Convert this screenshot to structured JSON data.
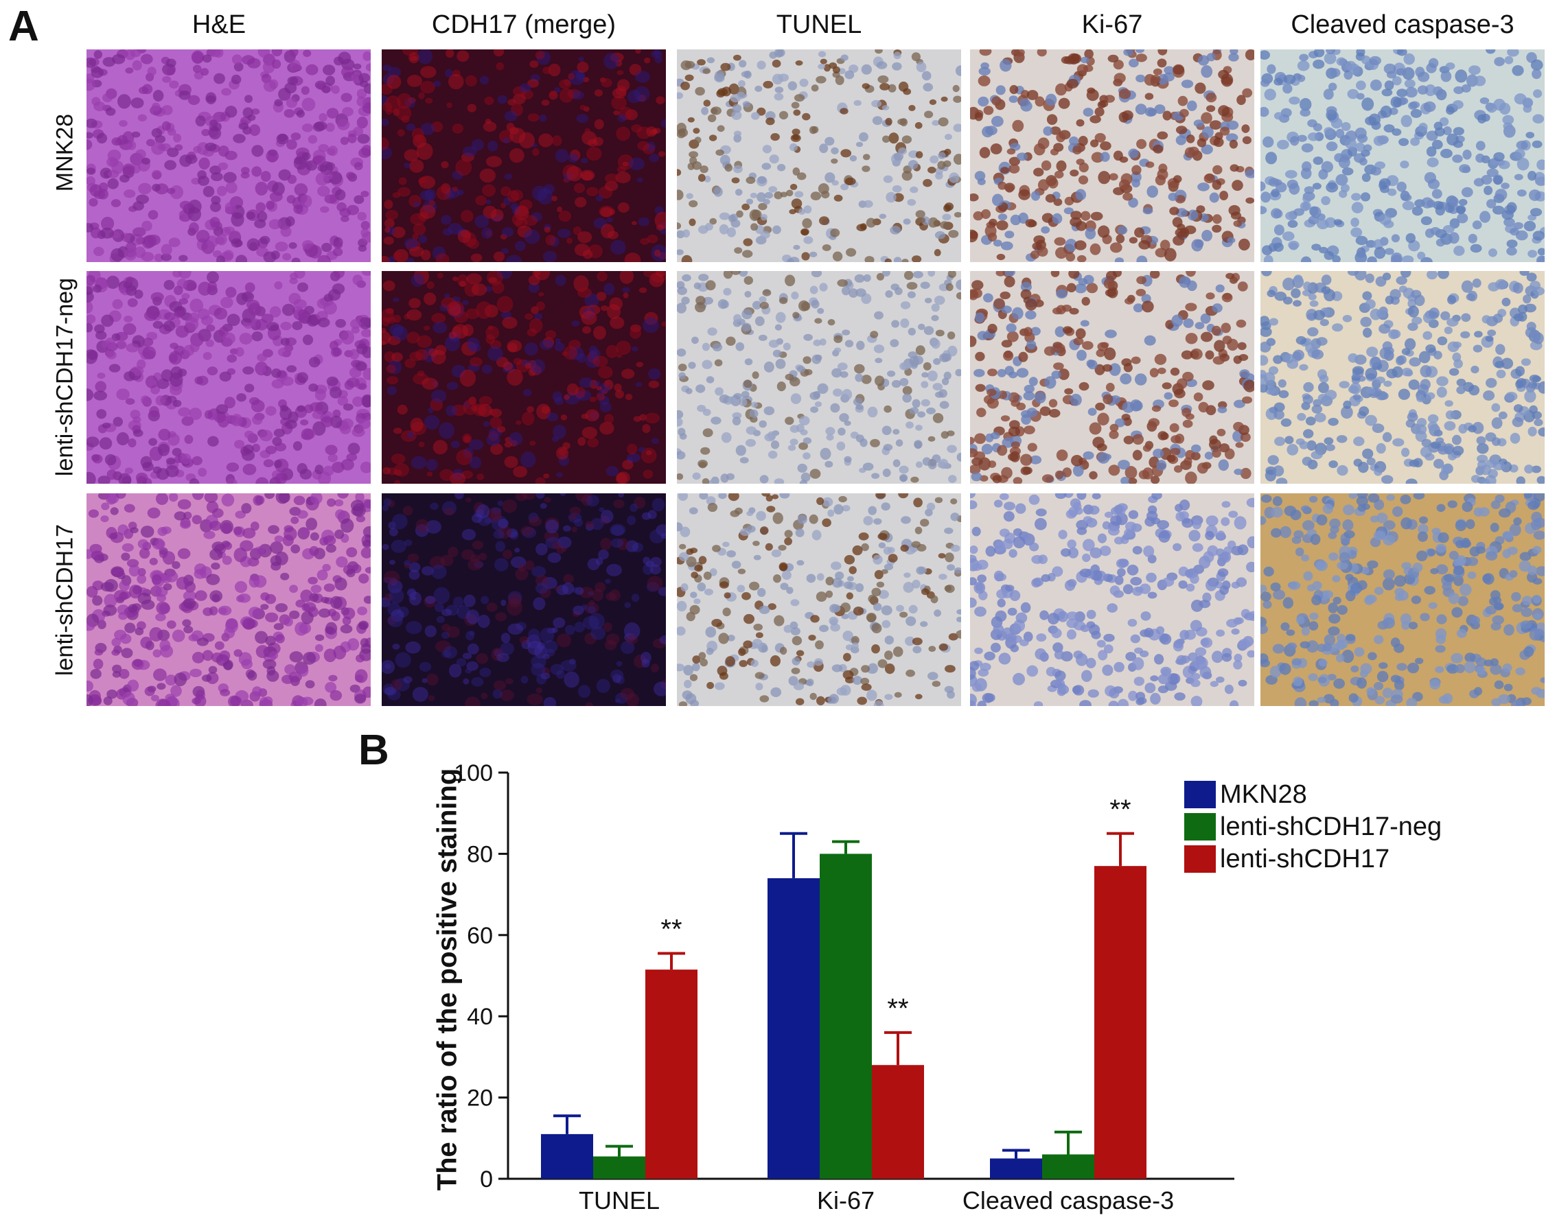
{
  "panel_a": {
    "letter": "A",
    "columns": [
      "H&E",
      "CDH17 (merge)",
      "TUNEL",
      "Ki-67",
      "Cleaved caspase-3"
    ],
    "rows": [
      "MNK28",
      "lenti-shCDH17-neg",
      "lenti-shCDH17"
    ]
  },
  "panel_b": {
    "letter": "B"
  },
  "chart_data": {
    "type": "bar",
    "title": "",
    "xlabel": "",
    "ylabel": "The ratio of the positive staining",
    "categories": [
      "TUNEL",
      "Ki-67",
      "Cleaved caspase-3"
    ],
    "ylim": [
      0,
      100
    ],
    "yticks": [
      0,
      20,
      40,
      60,
      80,
      100
    ],
    "grid": false,
    "legend_position": "top-right",
    "series": [
      {
        "name": "MKN28",
        "color": "#0d1b8c",
        "values": [
          11,
          74,
          5
        ],
        "errors": [
          4.5,
          11,
          2
        ]
      },
      {
        "name": "lenti-shCDH17-neg",
        "color": "#0e6b12",
        "values": [
          5.5,
          80,
          6
        ],
        "errors": [
          2.5,
          3,
          5.5
        ]
      },
      {
        "name": "lenti-shCDH17",
        "color": "#b01010",
        "values": [
          51.5,
          28,
          77
        ],
        "errors": [
          4,
          8,
          8
        ]
      }
    ],
    "annotations": [
      {
        "category": "TUNEL",
        "series": "lenti-shCDH17",
        "text": "**"
      },
      {
        "category": "Ki-67",
        "series": "lenti-shCDH17",
        "text": "**"
      },
      {
        "category": "Cleaved caspase-3",
        "series": "lenti-shCDH17",
        "text": "**"
      }
    ]
  }
}
